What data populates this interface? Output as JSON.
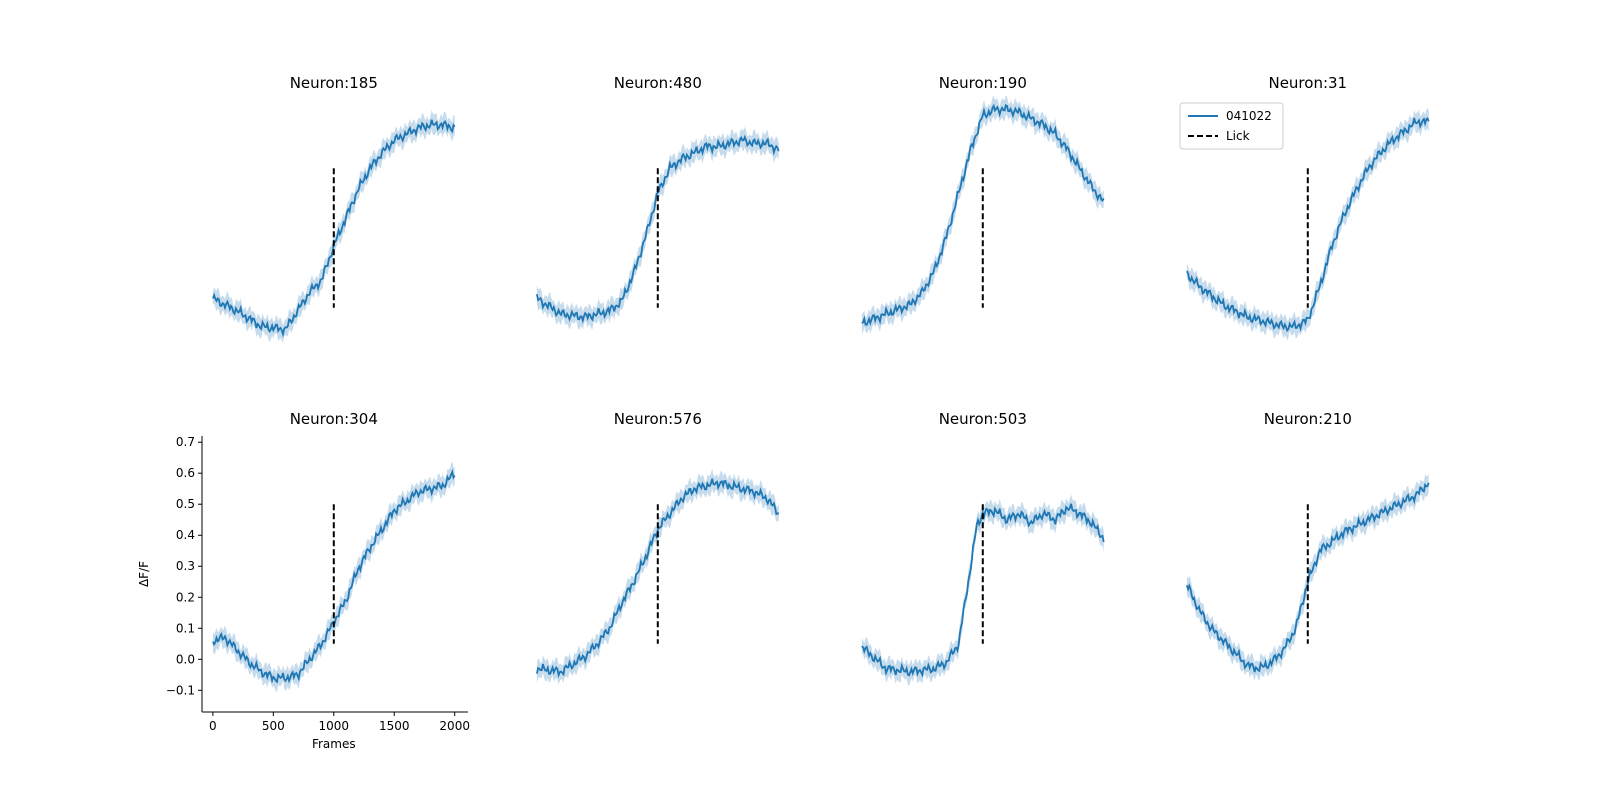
{
  "chart_data": {
    "type": "line",
    "layout": "2x4 grid of panels",
    "colors": {
      "series": "#1f77b4",
      "band": "#aecde6",
      "lick": "#000000"
    },
    "shared": {
      "x": {
        "label": "Frames",
        "ticks": [
          0,
          500,
          1000,
          1500,
          2000
        ],
        "range": [
          0,
          2000
        ]
      },
      "y": {
        "label": "ΔF/F",
        "ticks": [
          -0.1,
          0.0,
          0.1,
          0.2,
          0.3,
          0.4,
          0.5,
          0.6,
          0.7
        ],
        "tick_labels": [
          "−0.1",
          "0.0",
          "0.1",
          "0.2",
          "0.3",
          "0.4",
          "0.5",
          "0.6",
          "0.7"
        ],
        "range": [
          -0.17,
          0.72
        ]
      },
      "lick_frame": 1000,
      "lick_y": [
        0.05,
        0.5
      ]
    },
    "legend": {
      "placement": "top-left of panel Neuron:31",
      "entries": [
        {
          "label": "041022",
          "style": "solid"
        },
        {
          "label": "Lick",
          "style": "dashed"
        }
      ]
    },
    "panels": [
      {
        "title": "Neuron:185",
        "x": [
          0,
          200,
          400,
          600,
          800,
          900,
          1000,
          1100,
          1200,
          1300,
          1400,
          1500,
          1600,
          1700,
          1800,
          1900,
          2000
        ],
        "y": [
          0.08,
          0.04,
          -0.01,
          -0.02,
          0.1,
          0.14,
          0.25,
          0.34,
          0.43,
          0.5,
          0.55,
          0.59,
          0.61,
          0.63,
          0.64,
          0.64,
          0.63
        ]
      },
      {
        "title": "Neuron:480",
        "x": [
          0,
          200,
          400,
          600,
          700,
          800,
          900,
          1000,
          1100,
          1200,
          1300,
          1400,
          1500,
          1600,
          1700,
          1800,
          1900,
          2000
        ],
        "y": [
          0.08,
          0.03,
          0.02,
          0.04,
          0.07,
          0.16,
          0.28,
          0.42,
          0.5,
          0.53,
          0.55,
          0.57,
          0.57,
          0.58,
          0.59,
          0.58,
          0.58,
          0.56
        ]
      },
      {
        "title": "Neuron:190",
        "x": [
          0,
          200,
          400,
          500,
          600,
          700,
          800,
          900,
          1000,
          1100,
          1200,
          1300,
          1400,
          1500,
          1600,
          1700,
          1800,
          1900,
          2000
        ],
        "y": [
          0.0,
          0.03,
          0.06,
          0.1,
          0.17,
          0.28,
          0.42,
          0.56,
          0.67,
          0.69,
          0.69,
          0.68,
          0.66,
          0.64,
          0.61,
          0.56,
          0.5,
          0.44,
          0.39
        ]
      },
      {
        "title": "Neuron:31",
        "x": [
          0,
          100,
          200,
          300,
          400,
          500,
          600,
          700,
          800,
          900,
          1000,
          1100,
          1200,
          1300,
          1400,
          1500,
          1600,
          1700,
          1800,
          1900,
          2000
        ],
        "y": [
          0.16,
          0.12,
          0.09,
          0.06,
          0.04,
          0.02,
          0.01,
          0.0,
          -0.01,
          -0.01,
          0.01,
          0.12,
          0.25,
          0.35,
          0.43,
          0.5,
          0.55,
          0.59,
          0.62,
          0.65,
          0.65
        ]
      },
      {
        "title": "Neuron:304",
        "x": [
          0,
          100,
          200,
          300,
          400,
          500,
          600,
          700,
          800,
          900,
          1000,
          1100,
          1200,
          1300,
          1400,
          1500,
          1600,
          1700,
          1800,
          1900,
          2000
        ],
        "y": [
          0.06,
          0.07,
          0.03,
          -0.01,
          -0.04,
          -0.06,
          -0.06,
          -0.05,
          0.0,
          0.05,
          0.12,
          0.19,
          0.29,
          0.36,
          0.42,
          0.48,
          0.51,
          0.54,
          0.55,
          0.56,
          0.6
        ]
      },
      {
        "title": "Neuron:576",
        "x": [
          0,
          200,
          400,
          500,
          600,
          700,
          800,
          900,
          1000,
          1100,
          1200,
          1300,
          1400,
          1500,
          1600,
          1700,
          1800,
          1900,
          2000
        ],
        "y": [
          -0.03,
          -0.04,
          0.01,
          0.05,
          0.1,
          0.18,
          0.25,
          0.33,
          0.42,
          0.47,
          0.52,
          0.55,
          0.56,
          0.57,
          0.56,
          0.55,
          0.54,
          0.52,
          0.47
        ]
      },
      {
        "title": "Neuron:503",
        "x": [
          0,
          200,
          400,
          600,
          700,
          800,
          900,
          950,
          1000,
          1100,
          1200,
          1300,
          1400,
          1500,
          1600,
          1700,
          1800,
          1900,
          2000
        ],
        "y": [
          0.04,
          -0.03,
          -0.04,
          -0.03,
          -0.01,
          0.05,
          0.3,
          0.43,
          0.47,
          0.48,
          0.45,
          0.47,
          0.44,
          0.47,
          0.45,
          0.49,
          0.47,
          0.44,
          0.39
        ]
      },
      {
        "title": "Neuron:210",
        "x": [
          0,
          100,
          200,
          300,
          400,
          500,
          600,
          700,
          800,
          900,
          1000,
          1100,
          1200,
          1300,
          1400,
          1500,
          1600,
          1700,
          1800,
          1900,
          2000
        ],
        "y": [
          0.24,
          0.16,
          0.1,
          0.06,
          0.02,
          -0.02,
          -0.03,
          -0.01,
          0.03,
          0.1,
          0.25,
          0.35,
          0.38,
          0.41,
          0.43,
          0.45,
          0.47,
          0.49,
          0.51,
          0.53,
          0.57
        ]
      }
    ]
  }
}
